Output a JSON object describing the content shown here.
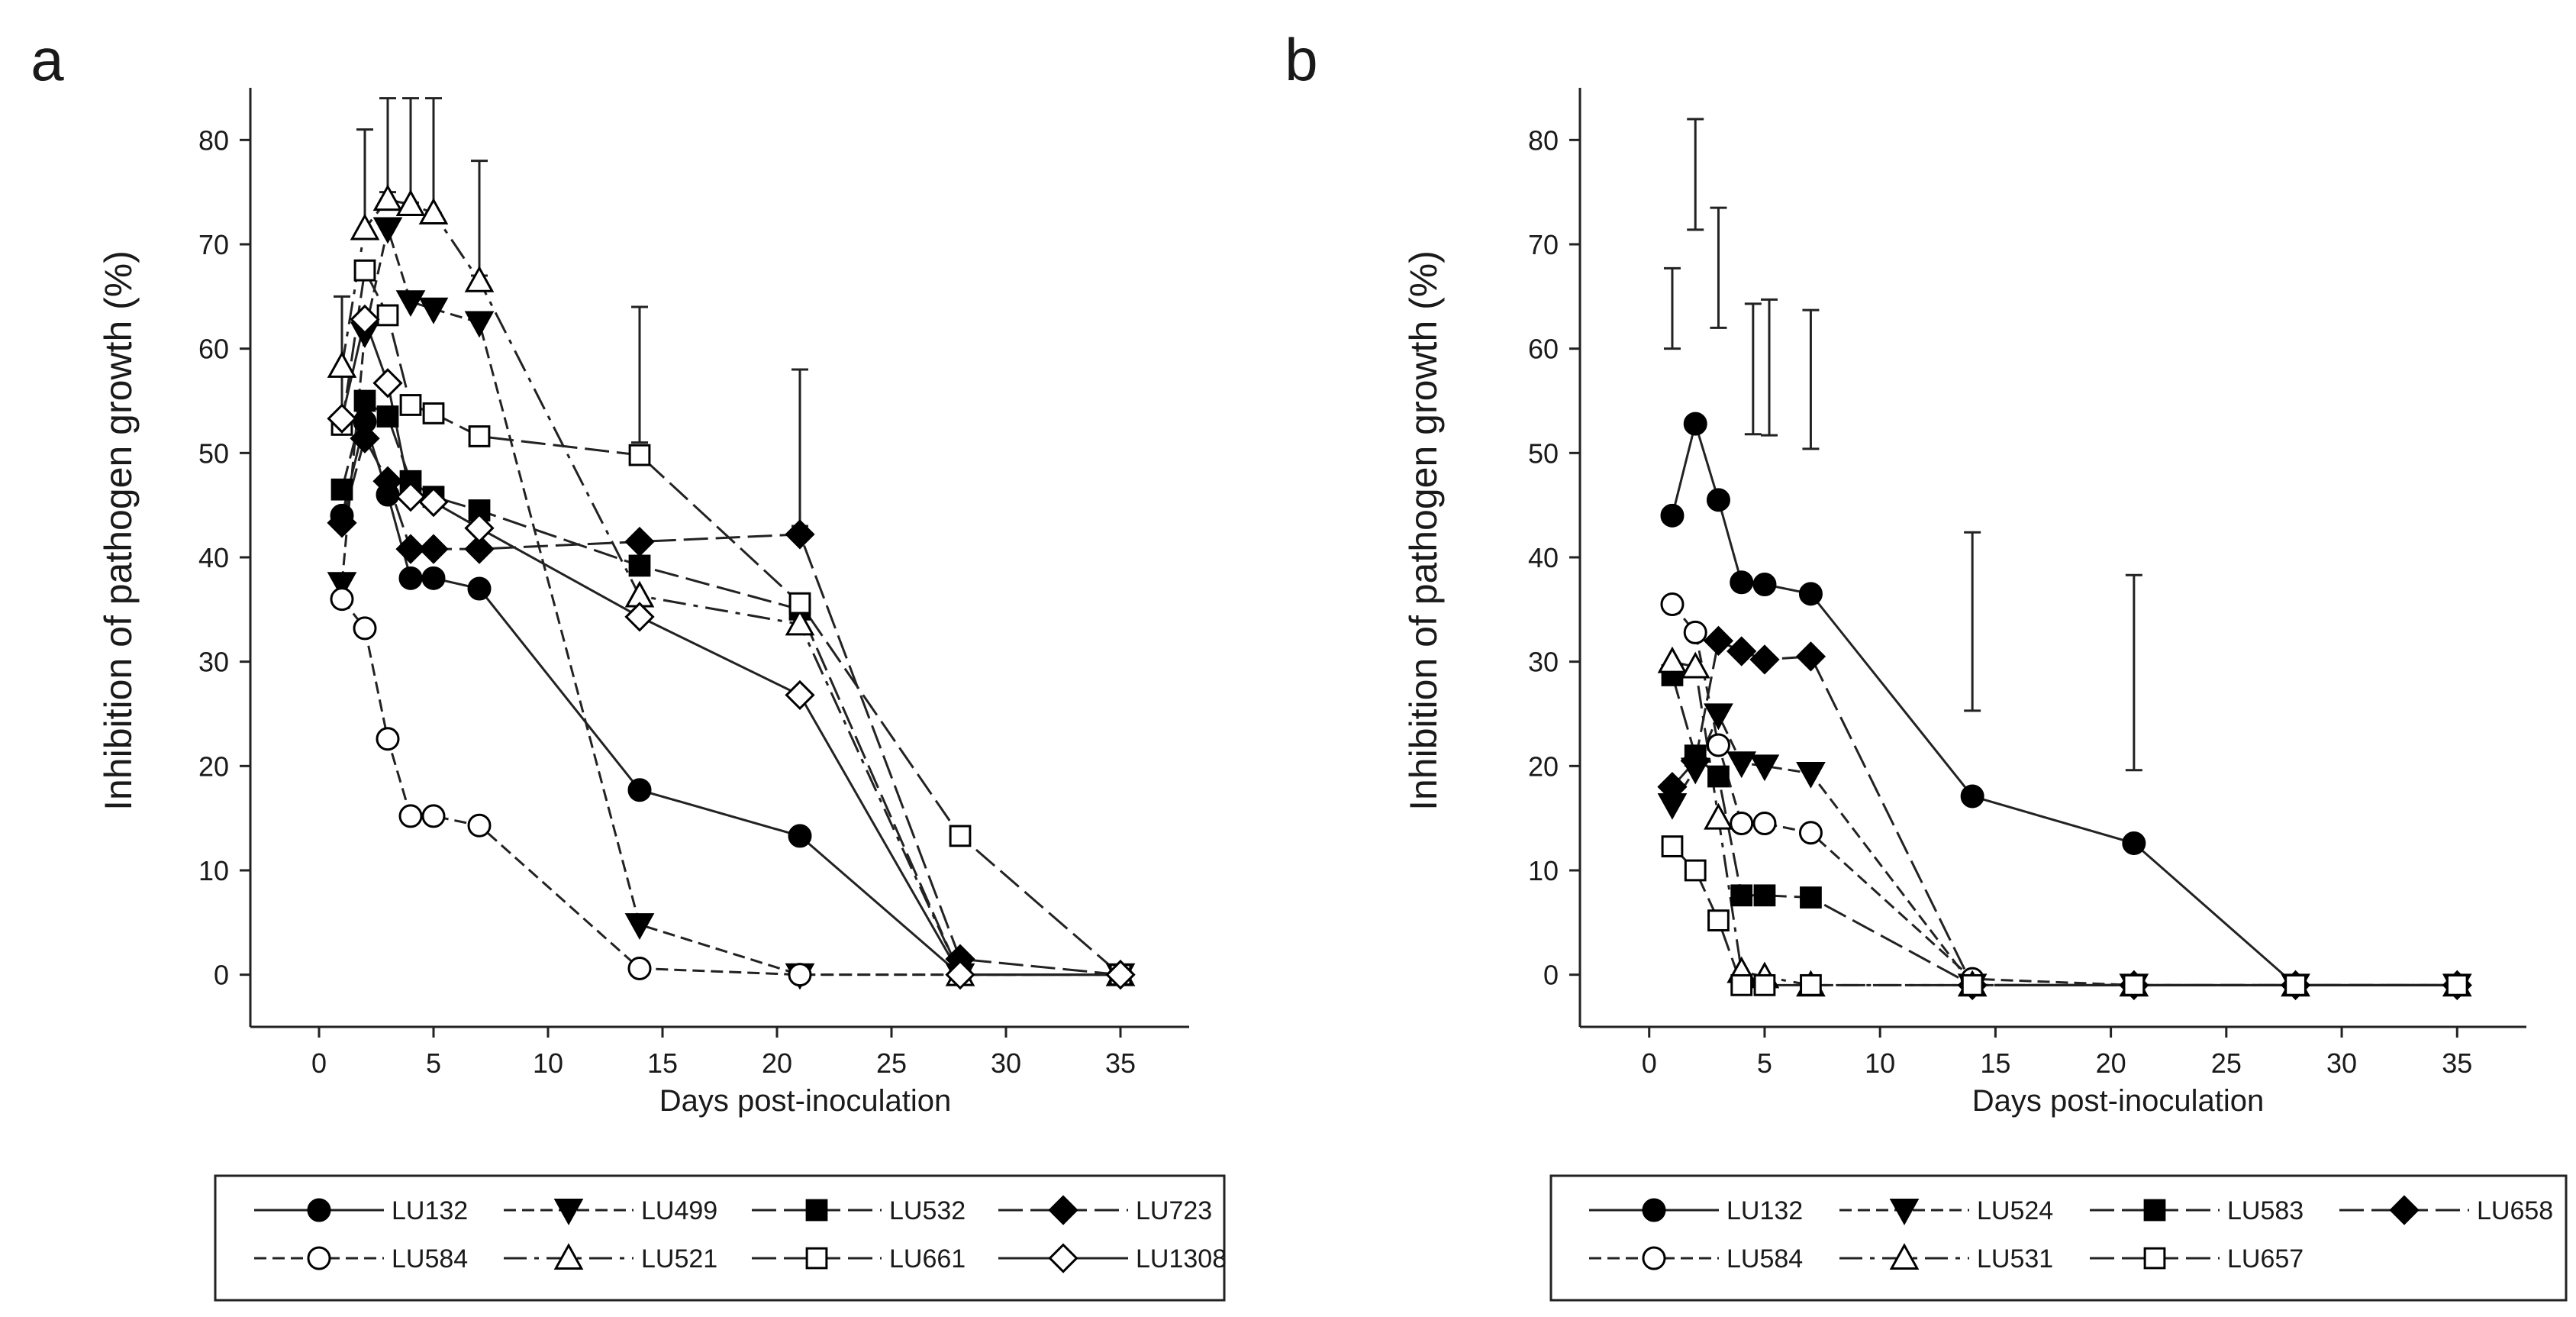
{
  "chart_data": [
    {
      "panel_label": "a",
      "type": "line",
      "xlabel": "Days post-inoculation",
      "ylabel": "Inhibition of pathogen growth (%)",
      "xlim": [
        -3,
        38
      ],
      "ylim": [
        -5,
        85
      ],
      "x_ticks": [
        0,
        5,
        10,
        15,
        20,
        25,
        30,
        35
      ],
      "y_ticks": [
        0,
        10,
        20,
        30,
        40,
        50,
        60,
        70,
        80
      ],
      "legend_position": "bottom",
      "error_bars": [
        {
          "x": 1,
          "low": 52,
          "high": 65
        },
        {
          "x": 2,
          "low": 71,
          "high": 81
        },
        {
          "x": 3,
          "low": 75,
          "high": 84
        },
        {
          "x": 4,
          "low": 74,
          "high": 84
        },
        {
          "x": 5,
          "low": 73,
          "high": 84
        },
        {
          "x": 7,
          "low": 67,
          "high": 78
        },
        {
          "x": 14,
          "low": 51,
          "high": 64
        },
        {
          "x": 21,
          "low": 43,
          "high": 58
        }
      ],
      "series": [
        {
          "name": "LU132",
          "marker": "circle",
          "fill": "black",
          "dash": "solid",
          "points": [
            [
              1,
              44
            ],
            [
              2,
              53
            ],
            [
              3,
              46
            ],
            [
              4,
              38
            ],
            [
              5,
              38
            ],
            [
              7,
              37
            ],
            [
              14,
              17.7
            ],
            [
              21,
              13.3
            ],
            [
              28,
              0
            ],
            [
              35,
              0
            ]
          ]
        },
        {
          "name": "LU499",
          "marker": "triangle-down",
          "fill": "black",
          "dash": "medium",
          "points": [
            [
              1,
              37.5
            ],
            [
              2,
              61.5
            ],
            [
              3,
              71.5
            ],
            [
              4,
              64.5
            ],
            [
              5,
              63.8
            ],
            [
              7,
              62.5
            ],
            [
              14,
              4.8
            ],
            [
              21,
              0
            ],
            [
              28,
              0
            ],
            [
              35,
              0
            ]
          ]
        },
        {
          "name": "LU532",
          "marker": "square",
          "fill": "black",
          "dash": "longdash",
          "points": [
            [
              1,
              46.5
            ],
            [
              2,
              55
            ],
            [
              3,
              53.5
            ],
            [
              4,
              47.3
            ],
            [
              5,
              45.8
            ],
            [
              7,
              44.5
            ],
            [
              14,
              39.2
            ],
            [
              21,
              35
            ],
            [
              28,
              0
            ],
            [
              35,
              0
            ]
          ]
        },
        {
          "name": "LU723",
          "marker": "diamond",
          "fill": "black",
          "dash": "longdash",
          "points": [
            [
              1,
              43.3
            ],
            [
              2,
              51.4
            ],
            [
              3,
              47.3
            ],
            [
              4,
              40.8
            ],
            [
              5,
              40.8
            ],
            [
              7,
              40.8
            ],
            [
              14,
              41.5
            ],
            [
              21,
              42.2
            ],
            [
              28,
              1.5
            ],
            [
              35,
              0
            ]
          ]
        },
        {
          "name": "LU584",
          "marker": "circle",
          "fill": "white",
          "dash": "medium",
          "points": [
            [
              1,
              36
            ],
            [
              2,
              33.2
            ],
            [
              3,
              22.6
            ],
            [
              4,
              15.2
            ],
            [
              5,
              15.2
            ],
            [
              7,
              14.3
            ],
            [
              14,
              0.6
            ],
            [
              21,
              0
            ],
            [
              28,
              0
            ],
            [
              35,
              0
            ]
          ]
        },
        {
          "name": "LU521",
          "marker": "triangle-up",
          "fill": "white",
          "dash": "dashdot",
          "points": [
            [
              1,
              58.3
            ],
            [
              2,
              71.5
            ],
            [
              3,
              74.3
            ],
            [
              4,
              73.8
            ],
            [
              5,
              73
            ],
            [
              7,
              66.5
            ],
            [
              14,
              36.3
            ],
            [
              21,
              33.6
            ],
            [
              28,
              0
            ],
            [
              35,
              0
            ]
          ]
        },
        {
          "name": "LU661",
          "marker": "square",
          "fill": "white",
          "dash": "longdash",
          "points": [
            [
              1,
              52.7
            ],
            [
              2,
              67.5
            ],
            [
              3,
              63.2
            ],
            [
              4,
              54.6
            ],
            [
              5,
              53.8
            ],
            [
              7,
              51.6
            ],
            [
              14,
              49.8
            ],
            [
              21,
              35.6
            ],
            [
              28,
              13.3
            ],
            [
              35,
              0
            ]
          ]
        },
        {
          "name": "LU1308",
          "marker": "diamond",
          "fill": "white",
          "dash": "solid",
          "points": [
            [
              1,
              53.3
            ],
            [
              2,
              62.8
            ],
            [
              3,
              56.7
            ],
            [
              4,
              45.8
            ],
            [
              5,
              45.3
            ],
            [
              7,
              42.8
            ],
            [
              14,
              34.3
            ],
            [
              21,
              26.8
            ],
            [
              28,
              0
            ],
            [
              35,
              0
            ]
          ]
        }
      ]
    },
    {
      "panel_label": "b",
      "type": "line",
      "xlabel": "Days post-inoculation",
      "ylabel": "Inhibition of pathogen growth (%)",
      "xlim": [
        -3,
        38
      ],
      "ylim": [
        -5,
        85
      ],
      "x_ticks": [
        0,
        5,
        10,
        15,
        20,
        25,
        30,
        35
      ],
      "y_ticks": [
        0,
        10,
        20,
        30,
        40,
        50,
        60,
        70,
        80
      ],
      "legend_position": "bottom",
      "error_bars": [
        {
          "x": 1,
          "low": 60,
          "high": 67.7
        },
        {
          "x": 2,
          "low": 71.4,
          "high": 82
        },
        {
          "x": 3,
          "low": 62,
          "high": 73.5
        },
        {
          "x": 4.5,
          "low": 51.8,
          "high": 64.3
        },
        {
          "x": 5.2,
          "low": 51.7,
          "high": 64.7
        },
        {
          "x": 7,
          "low": 50.4,
          "high": 63.7
        },
        {
          "x": 14,
          "low": 25.3,
          "high": 42.4
        },
        {
          "x": 21,
          "low": 19.6,
          "high": 38.3
        }
      ],
      "series": [
        {
          "name": "LU132",
          "marker": "circle",
          "fill": "black",
          "dash": "solid",
          "points": [
            [
              1,
              44
            ],
            [
              2,
              52.8
            ],
            [
              3,
              45.5
            ],
            [
              4,
              37.6
            ],
            [
              5,
              37.4
            ],
            [
              7,
              36.5
            ],
            [
              14,
              17.1
            ],
            [
              21,
              12.6
            ],
            [
              28,
              -1
            ],
            [
              35,
              -1
            ]
          ]
        },
        {
          "name": "LU524",
          "marker": "triangle-down",
          "fill": "black",
          "dash": "medium",
          "points": [
            [
              1,
              16.3
            ],
            [
              2,
              19.7
            ],
            [
              3,
              24.9
            ],
            [
              4,
              20.3
            ],
            [
              5,
              20
            ],
            [
              7,
              19.3
            ],
            [
              14,
              -1
            ],
            [
              21,
              -1
            ],
            [
              28,
              -1
            ],
            [
              35,
              -1
            ]
          ]
        },
        {
          "name": "LU583",
          "marker": "square",
          "fill": "black",
          "dash": "longdash",
          "points": [
            [
              1,
              28.7
            ],
            [
              2,
              21
            ],
            [
              3,
              19
            ],
            [
              4,
              7.6
            ],
            [
              5,
              7.6
            ],
            [
              7,
              7.4
            ],
            [
              14,
              -1
            ],
            [
              21,
              -1
            ],
            [
              28,
              -1
            ],
            [
              35,
              -1
            ]
          ]
        },
        {
          "name": "LU658",
          "marker": "diamond",
          "fill": "black",
          "dash": "longdash",
          "points": [
            [
              1,
              18
            ],
            [
              2,
              20.5
            ],
            [
              3,
              32
            ],
            [
              4,
              31
            ],
            [
              5,
              30.2
            ],
            [
              7,
              30.5
            ],
            [
              14,
              -1
            ],
            [
              21,
              -1
            ],
            [
              28,
              -1
            ],
            [
              35,
              -1
            ]
          ]
        },
        {
          "name": "LU584",
          "marker": "circle",
          "fill": "white",
          "dash": "medium",
          "points": [
            [
              1,
              35.5
            ],
            [
              2,
              32.8
            ],
            [
              3,
              22
            ],
            [
              4,
              14.5
            ],
            [
              5,
              14.5
            ],
            [
              7,
              13.6
            ],
            [
              14,
              -0.4
            ],
            [
              21,
              -1
            ],
            [
              28,
              -1
            ],
            [
              35,
              -1
            ]
          ]
        },
        {
          "name": "LU531",
          "marker": "triangle-up",
          "fill": "white",
          "dash": "dashdot",
          "points": [
            [
              1,
              30
            ],
            [
              2,
              29.5
            ],
            [
              3,
              15
            ],
            [
              4,
              0.3
            ],
            [
              5,
              -0.2
            ],
            [
              7,
              -1
            ],
            [
              14,
              -1
            ],
            [
              21,
              -1
            ],
            [
              28,
              -1
            ],
            [
              35,
              -1
            ]
          ]
        },
        {
          "name": "LU657",
          "marker": "square",
          "fill": "white",
          "dash": "longdash",
          "points": [
            [
              1,
              12.3
            ],
            [
              2,
              10
            ],
            [
              3,
              5.2
            ],
            [
              4,
              -1
            ],
            [
              5,
              -1
            ],
            [
              7,
              -1
            ],
            [
              14,
              -1
            ],
            [
              21,
              -1
            ],
            [
              28,
              -1
            ],
            [
              35,
              -1
            ]
          ]
        }
      ]
    }
  ]
}
